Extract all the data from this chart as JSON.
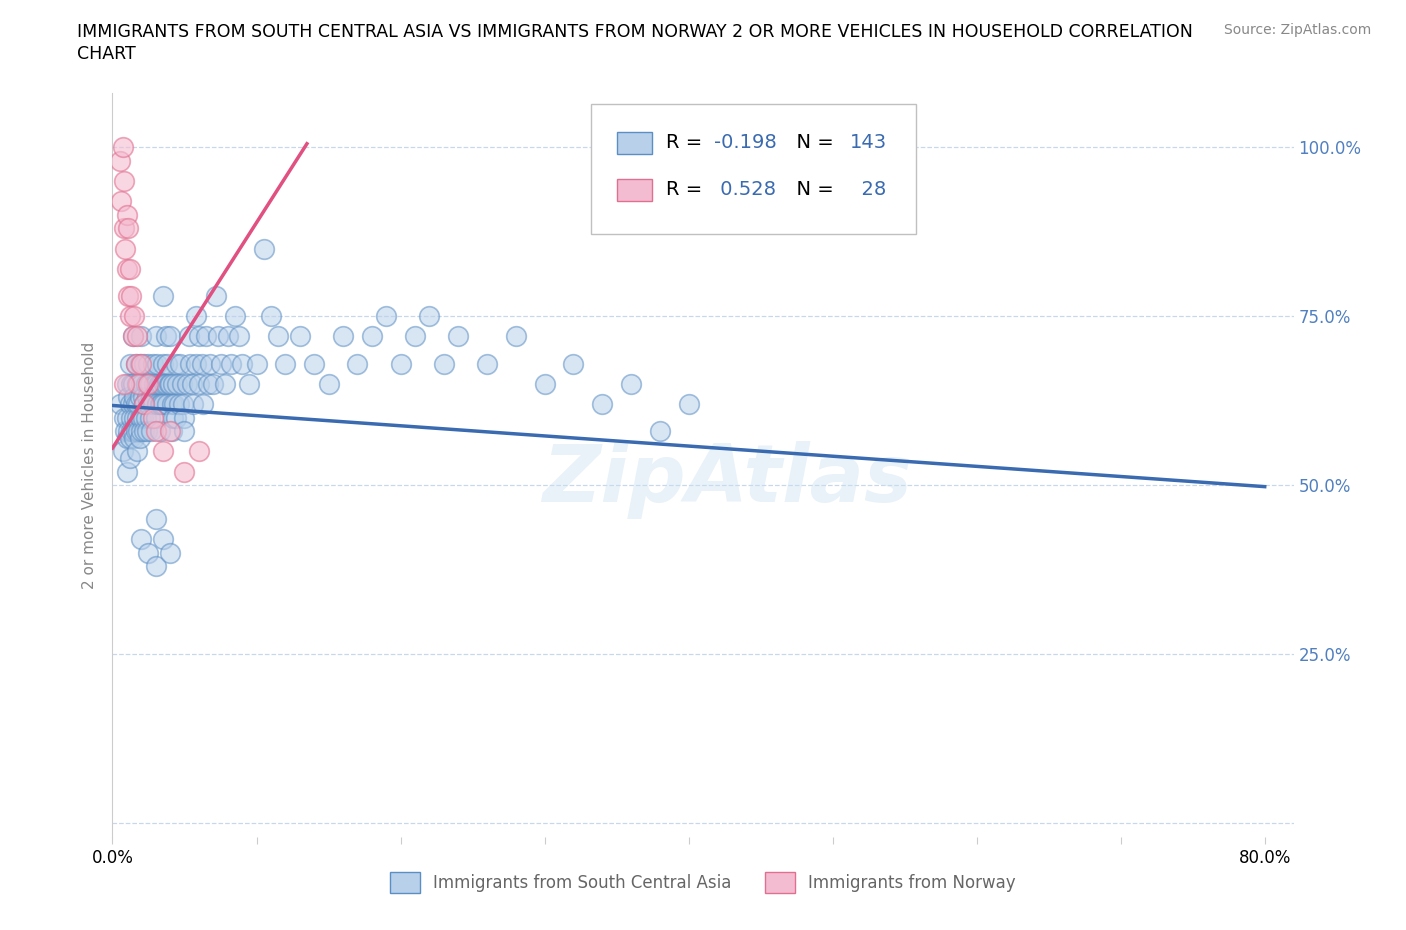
{
  "title_line1": "IMMIGRANTS FROM SOUTH CENTRAL ASIA VS IMMIGRANTS FROM NORWAY 2 OR MORE VEHICLES IN HOUSEHOLD CORRELATION",
  "title_line2": "CHART",
  "source": "Source: ZipAtlas.com",
  "ylabel": "2 or more Vehicles in Household",
  "xlim": [
    0.0,
    0.82
  ],
  "ylim": [
    -0.02,
    1.08
  ],
  "xticks": [
    0.0,
    0.1,
    0.2,
    0.3,
    0.4,
    0.5,
    0.6,
    0.7,
    0.8
  ],
  "xticklabels": [
    "0.0%",
    "",
    "",
    "",
    "",
    "",
    "",
    "",
    "80.0%"
  ],
  "yticks": [
    0.0,
    0.25,
    0.5,
    0.75,
    1.0
  ],
  "yticklabels_right": [
    "",
    "25.0%",
    "50.0%",
    "75.0%",
    "100.0%"
  ],
  "blue_fill": "#b8d0ea",
  "blue_edge": "#5b8ec4",
  "blue_line": "#3a6ab0",
  "pink_fill": "#f4bcd0",
  "pink_edge": "#e07090",
  "pink_line": "#e05080",
  "right_tick_color": "#5080c0",
  "grid_color": "#c8d8ec",
  "R_blue": -0.198,
  "N_blue": 143,
  "R_pink": 0.528,
  "N_pink": 28,
  "legend_blue_label": "Immigrants from South Central Asia",
  "legend_pink_label": "Immigrants from Norway",
  "watermark": "ZipAtlas",
  "blue_line_x": [
    0.0,
    0.8
  ],
  "blue_line_y": [
    0.618,
    0.498
  ],
  "pink_line_x": [
    0.0,
    0.135
  ],
  "pink_line_y": [
    0.555,
    1.005
  ],
  "blue_scatter": [
    [
      0.005,
      0.62
    ],
    [
      0.007,
      0.55
    ],
    [
      0.008,
      0.6
    ],
    [
      0.009,
      0.58
    ],
    [
      0.01,
      0.65
    ],
    [
      0.01,
      0.6
    ],
    [
      0.01,
      0.57
    ],
    [
      0.01,
      0.52
    ],
    [
      0.011,
      0.63
    ],
    [
      0.011,
      0.58
    ],
    [
      0.012,
      0.68
    ],
    [
      0.012,
      0.62
    ],
    [
      0.012,
      0.57
    ],
    [
      0.012,
      0.54
    ],
    [
      0.013,
      0.65
    ],
    [
      0.013,
      0.6
    ],
    [
      0.013,
      0.58
    ],
    [
      0.014,
      0.72
    ],
    [
      0.014,
      0.65
    ],
    [
      0.014,
      0.62
    ],
    [
      0.014,
      0.58
    ],
    [
      0.015,
      0.63
    ],
    [
      0.015,
      0.6
    ],
    [
      0.015,
      0.57
    ],
    [
      0.016,
      0.68
    ],
    [
      0.016,
      0.62
    ],
    [
      0.016,
      0.58
    ],
    [
      0.017,
      0.65
    ],
    [
      0.017,
      0.6
    ],
    [
      0.017,
      0.55
    ],
    [
      0.018,
      0.62
    ],
    [
      0.018,
      0.58
    ],
    [
      0.019,
      0.68
    ],
    [
      0.019,
      0.63
    ],
    [
      0.019,
      0.6
    ],
    [
      0.019,
      0.57
    ],
    [
      0.02,
      0.72
    ],
    [
      0.02,
      0.65
    ],
    [
      0.02,
      0.6
    ],
    [
      0.02,
      0.58
    ],
    [
      0.021,
      0.63
    ],
    [
      0.021,
      0.6
    ],
    [
      0.022,
      0.68
    ],
    [
      0.022,
      0.62
    ],
    [
      0.022,
      0.58
    ],
    [
      0.023,
      0.65
    ],
    [
      0.023,
      0.6
    ],
    [
      0.024,
      0.63
    ],
    [
      0.024,
      0.58
    ],
    [
      0.025,
      0.68
    ],
    [
      0.025,
      0.62
    ],
    [
      0.026,
      0.65
    ],
    [
      0.026,
      0.6
    ],
    [
      0.027,
      0.63
    ],
    [
      0.027,
      0.58
    ],
    [
      0.028,
      0.68
    ],
    [
      0.028,
      0.62
    ],
    [
      0.029,
      0.65
    ],
    [
      0.03,
      0.72
    ],
    [
      0.03,
      0.65
    ],
    [
      0.03,
      0.6
    ],
    [
      0.031,
      0.68
    ],
    [
      0.031,
      0.62
    ],
    [
      0.032,
      0.65
    ],
    [
      0.033,
      0.62
    ],
    [
      0.033,
      0.58
    ],
    [
      0.034,
      0.65
    ],
    [
      0.034,
      0.62
    ],
    [
      0.035,
      0.78
    ],
    [
      0.035,
      0.68
    ],
    [
      0.035,
      0.62
    ],
    [
      0.036,
      0.65
    ],
    [
      0.037,
      0.72
    ],
    [
      0.037,
      0.65
    ],
    [
      0.038,
      0.68
    ],
    [
      0.038,
      0.62
    ],
    [
      0.039,
      0.65
    ],
    [
      0.04,
      0.72
    ],
    [
      0.04,
      0.65
    ],
    [
      0.041,
      0.62
    ],
    [
      0.041,
      0.58
    ],
    [
      0.042,
      0.65
    ],
    [
      0.042,
      0.6
    ],
    [
      0.043,
      0.62
    ],
    [
      0.044,
      0.68
    ],
    [
      0.044,
      0.6
    ],
    [
      0.045,
      0.65
    ],
    [
      0.046,
      0.62
    ],
    [
      0.047,
      0.68
    ],
    [
      0.048,
      0.65
    ],
    [
      0.049,
      0.62
    ],
    [
      0.05,
      0.6
    ],
    [
      0.05,
      0.58
    ],
    [
      0.052,
      0.65
    ],
    [
      0.053,
      0.72
    ],
    [
      0.054,
      0.68
    ],
    [
      0.055,
      0.65
    ],
    [
      0.056,
      0.62
    ],
    [
      0.058,
      0.75
    ],
    [
      0.058,
      0.68
    ],
    [
      0.06,
      0.72
    ],
    [
      0.06,
      0.65
    ],
    [
      0.062,
      0.68
    ],
    [
      0.063,
      0.62
    ],
    [
      0.065,
      0.72
    ],
    [
      0.066,
      0.65
    ],
    [
      0.068,
      0.68
    ],
    [
      0.07,
      0.65
    ],
    [
      0.072,
      0.78
    ],
    [
      0.073,
      0.72
    ],
    [
      0.075,
      0.68
    ],
    [
      0.078,
      0.65
    ],
    [
      0.08,
      0.72
    ],
    [
      0.082,
      0.68
    ],
    [
      0.085,
      0.75
    ],
    [
      0.088,
      0.72
    ],
    [
      0.09,
      0.68
    ],
    [
      0.095,
      0.65
    ],
    [
      0.1,
      0.68
    ],
    [
      0.105,
      0.85
    ],
    [
      0.11,
      0.75
    ],
    [
      0.115,
      0.72
    ],
    [
      0.12,
      0.68
    ],
    [
      0.13,
      0.72
    ],
    [
      0.14,
      0.68
    ],
    [
      0.15,
      0.65
    ],
    [
      0.16,
      0.72
    ],
    [
      0.17,
      0.68
    ],
    [
      0.18,
      0.72
    ],
    [
      0.19,
      0.75
    ],
    [
      0.2,
      0.68
    ],
    [
      0.21,
      0.72
    ],
    [
      0.22,
      0.75
    ],
    [
      0.23,
      0.68
    ],
    [
      0.24,
      0.72
    ],
    [
      0.26,
      0.68
    ],
    [
      0.28,
      0.72
    ],
    [
      0.3,
      0.65
    ],
    [
      0.32,
      0.68
    ],
    [
      0.34,
      0.62
    ],
    [
      0.36,
      0.65
    ],
    [
      0.38,
      0.58
    ],
    [
      0.4,
      0.62
    ],
    [
      0.02,
      0.42
    ],
    [
      0.025,
      0.4
    ],
    [
      0.03,
      0.38
    ],
    [
      0.03,
      0.45
    ],
    [
      0.035,
      0.42
    ],
    [
      0.04,
      0.4
    ]
  ],
  "pink_scatter": [
    [
      0.005,
      0.98
    ],
    [
      0.006,
      0.92
    ],
    [
      0.007,
      1.0
    ],
    [
      0.008,
      0.88
    ],
    [
      0.008,
      0.95
    ],
    [
      0.009,
      0.85
    ],
    [
      0.01,
      0.9
    ],
    [
      0.01,
      0.82
    ],
    [
      0.011,
      0.88
    ],
    [
      0.011,
      0.78
    ],
    [
      0.012,
      0.82
    ],
    [
      0.012,
      0.75
    ],
    [
      0.013,
      0.78
    ],
    [
      0.014,
      0.72
    ],
    [
      0.015,
      0.75
    ],
    [
      0.016,
      0.68
    ],
    [
      0.017,
      0.72
    ],
    [
      0.018,
      0.65
    ],
    [
      0.02,
      0.68
    ],
    [
      0.022,
      0.62
    ],
    [
      0.025,
      0.65
    ],
    [
      0.028,
      0.6
    ],
    [
      0.03,
      0.58
    ],
    [
      0.035,
      0.55
    ],
    [
      0.04,
      0.58
    ],
    [
      0.05,
      0.52
    ],
    [
      0.06,
      0.55
    ],
    [
      0.008,
      0.65
    ]
  ]
}
